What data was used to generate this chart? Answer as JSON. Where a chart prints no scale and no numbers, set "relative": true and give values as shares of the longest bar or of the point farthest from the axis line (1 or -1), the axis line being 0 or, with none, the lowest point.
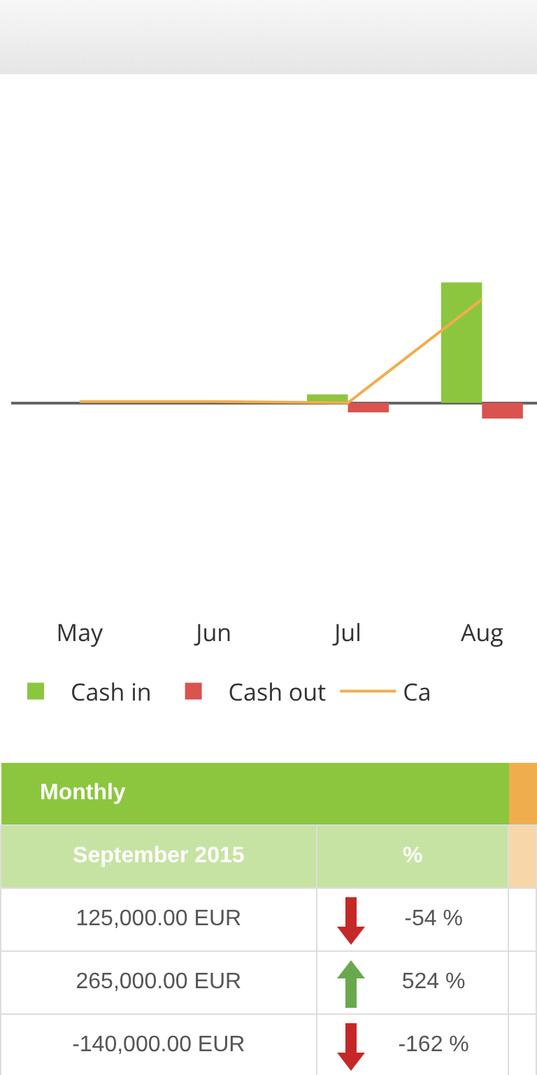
{
  "chart_data": {
    "type": "bar",
    "relative": true,
    "grid": false,
    "legend": "bottom",
    "categories": [
      "May",
      "Jun",
      "Jul",
      "Aug"
    ],
    "series": [
      {
        "name": "Cash in",
        "color": "#8cc63f",
        "values": [
          0,
          0,
          0.07,
          1
        ]
      },
      {
        "name": "Cash out",
        "color": "#d9534f",
        "values": [
          0,
          0,
          -0.08,
          -0.13
        ]
      },
      {
        "name": "Ca",
        "type": "line",
        "color": "#f0ad4e",
        "values": [
          0.01,
          0.01,
          0,
          0.86
        ]
      }
    ],
    "annotations": [
      "Monthly",
      "September 2015",
      "%",
      "125,000.00 EUR",
      "-54 %",
      "265,000.00 EUR",
      "524 %",
      "-140,000.00 EUR",
      "-162 %"
    ]
  }
}
